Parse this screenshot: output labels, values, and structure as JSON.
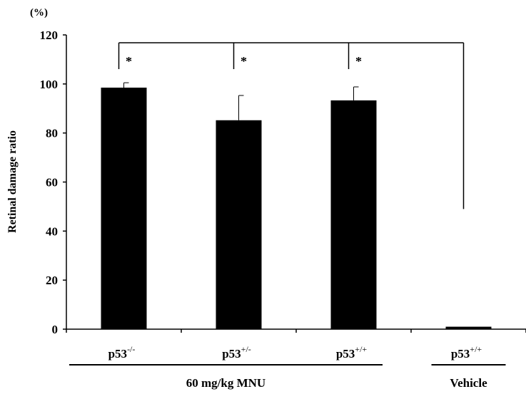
{
  "chart_data": {
    "type": "bar",
    "title": "",
    "ylabel": "Retinal damage ratio",
    "yunit": "(%)",
    "ylim": [
      0,
      120
    ],
    "yticks": [
      0,
      20,
      40,
      60,
      80,
      100,
      120
    ],
    "grid": false,
    "categories": [
      "p53",
      "p53",
      "p53",
      "p53"
    ],
    "category_superscripts": [
      "-/-",
      "+/-",
      "+/+",
      "+/+"
    ],
    "values": [
      98.5,
      85.2,
      93.3,
      1
    ],
    "error_plus": [
      2.0,
      10.1,
      5.5,
      0
    ],
    "bar_color": "#000000",
    "groups": [
      {
        "label": "60 mg/kg MNU",
        "categories": [
          0,
          1,
          2
        ]
      },
      {
        "label": "Vehicle",
        "categories": [
          3
        ]
      }
    ],
    "significance": {
      "marker": "*",
      "comparisons": [
        [
          0,
          3
        ],
        [
          1,
          3
        ],
        [
          2,
          3
        ]
      ]
    }
  }
}
